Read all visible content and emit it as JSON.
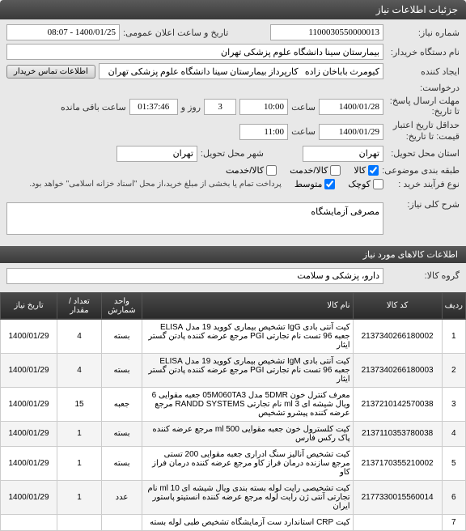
{
  "header": {
    "title": "جزئیات اطلاعات نیاز"
  },
  "form": {
    "need_no_label": "شماره نیاز:",
    "need_no": "1100030550000013",
    "public_date_label": "تاریخ و ساعت اعلان عمومی:",
    "public_date": "1400/01/25 - 08:07",
    "buyer_label": "نام دستگاه خریدار:",
    "buyer": "بیمارستان سینا دانشگاه علوم پزشکی تهران",
    "creator_label": "ایجاد کننده",
    "creator": "کیومرث باباخان زاده   کارپرداز بیمارستان سینا دانشگاه علوم پزشکی تهران",
    "contact_btn": "اطلاعات تماس خریدار",
    "request_label": "درخواست:",
    "deadline_label": "مهلت ارسال پاسخ:",
    "deadline_to_label": "تا تاریخ:",
    "deadline_date": "1400/01/28",
    "saat_label": "ساعت",
    "deadline_hour": "10:00",
    "days_count": "3",
    "rooz_label": "روز و",
    "timer": "01:37:46",
    "remain_label": "ساعت باقی مانده",
    "validity_label": "حداقل تاریخ اعتبار",
    "validity_to_label": "قیمت: تا تاریخ:",
    "validity_date": "1400/01/29",
    "validity_hour": "11:00",
    "province_label": "استان محل تحویل:",
    "province": "تهران",
    "city_label": "شهر محل تحویل:",
    "city": "تهران",
    "category_label": "طبقه بندی موضوعی:",
    "cat_kala": "کالا",
    "cat_service": "کالا/خدمت",
    "cat_service2": "کالا/خدمت",
    "process_label": "نوع فرآیند خرید :",
    "proc_small": "کوچک",
    "proc_mid": "متوسط",
    "note": "پرداخت تمام یا بخشی از مبلغ خرید،از محل \"اسناد خزانه اسلامی\" خواهد بود.",
    "desc_main_label": "شرح کلی نیاز:",
    "desc_main": "مصرفی آزمایشگاه"
  },
  "items_section": {
    "title": "اطلاعات کالاهای مورد نیاز",
    "group_label": "گروه کالا:",
    "group": "دارو، پزشکی و سلامت"
  },
  "table": {
    "headers": {
      "idx": "ردیف",
      "code": "کد کالا",
      "name": "نام کالا",
      "unit": "واحد شمارش",
      "qty": "تعداد / مقدار",
      "date": "تاریخ نیاز"
    },
    "rows": [
      {
        "idx": "1",
        "code": "2137340266180002",
        "name": "کیت آنتی بادی IgG تشخیص بیماری کووید 19 مدل ELISA جعبه 96 تست نام تجارتی PGI مرجع عرضه کننده پادتن گستر ایثار",
        "unit": "بسته",
        "qty": "4",
        "date": "1400/01/29"
      },
      {
        "idx": "2",
        "code": "2137340266180003",
        "name": "کیت آنتی بادی IgM تشخیص بیماری کووید 19 مدل ELISA جعبه 96 تست نام تجارتی PGI مرجع عرضه کننده پادتن گستر ایثار",
        "unit": "بسته",
        "qty": "4",
        "date": "1400/01/29"
      },
      {
        "idx": "3",
        "code": "2137210142570038",
        "name": "معرف کنترل خون 5DMR مدل 05M060TA3 جعبه مقوایی 6 ویال شیشه ای 3 ml نام تجارتی RANDD SYSTEMS مرجع عرضه کننده پیشرو تشخیص",
        "unit": "جعبه",
        "qty": "15",
        "date": "1400/01/29"
      },
      {
        "idx": "4",
        "code": "2137110353780038",
        "name": "کیت کلسترول خون جعبه مقوایی 500 ml مرجع عرضه کننده پاک رکس فارس",
        "unit": "بسته",
        "qty": "1",
        "date": "1400/01/29"
      },
      {
        "idx": "5",
        "code": "2137170355210002",
        "name": "کیت تشخیص آنالیز سنگ ادراری جعبه مقوایی 200 تستی مرجع سازنده درمان فراز کاو مرجع عرضه کننده درمان فراز کاو",
        "unit": "بسته",
        "qty": "1",
        "date": "1400/01/29"
      },
      {
        "idx": "6",
        "code": "2177330015560014",
        "name": "کیت تشخیصی رایت لوله بسته بندی ویال شیشه ای 10 ml نام تجارتی آنتی ژن رایت لوله مرجع عرضه کننده انستیتو پاستور ایران",
        "unit": "عدد",
        "qty": "1",
        "date": "1400/01/29"
      },
      {
        "idx": "7",
        "code": "",
        "name": "کیت CRP استاندارد ست آزمایشگاه تشخیص طبی لوله بسته",
        "unit": "",
        "qty": "",
        "date": ""
      }
    ]
  }
}
